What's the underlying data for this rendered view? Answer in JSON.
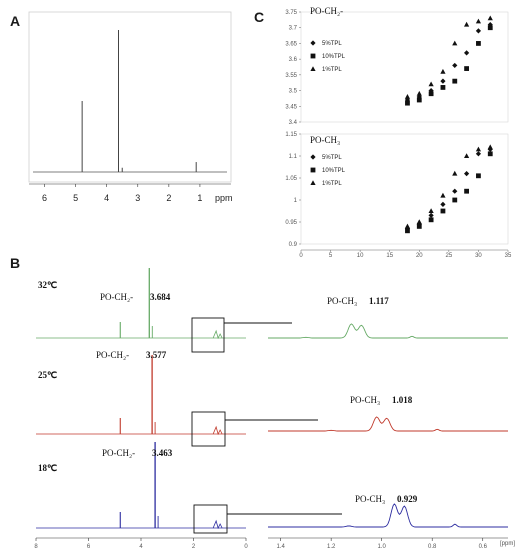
{
  "panels": {
    "a": {
      "letter": "A",
      "x_ticks": [
        "6",
        "5",
        "4",
        "3",
        "2",
        "1"
      ],
      "x_unit": "ppm"
    },
    "b": {
      "letter": "B"
    },
    "c": {
      "letter": "C"
    }
  },
  "chart_data": [
    {
      "type": "line",
      "panel": "A",
      "xlabel": "ppm",
      "xlim": [
        6.5,
        0
      ],
      "x_ticks": [
        6,
        5,
        4,
        3,
        2,
        1
      ],
      "peaks": [
        {
          "x": 4.79,
          "height": 0.5
        },
        {
          "x": 3.62,
          "height": 1.0
        },
        {
          "x": 3.5,
          "height": 0.03
        },
        {
          "x": 1.12,
          "height": 0.07
        }
      ]
    },
    {
      "type": "line",
      "panel": "B",
      "temperatures": [
        {
          "label": "32℃",
          "color": "#66aa66",
          "ch2_label": "PO-CH₂-",
          "ch2_shift": "3.684",
          "ch3_label": "PO-CH₃",
          "ch3_shift": "1.117"
        },
        {
          "label": "25℃",
          "color": "#c0392b",
          "ch2_label": "PO-CH₂-",
          "ch2_shift": "3.577",
          "ch3_label": "PO-CH₃",
          "ch3_shift": "1.018"
        },
        {
          "label": "18℃",
          "color": "#2c2ca0",
          "ch2_label": "PO-CH₂-",
          "ch2_shift": "3.463",
          "ch3_label": "PO-CH₃",
          "ch3_shift": "0.929"
        }
      ],
      "full_x_ticks": [
        "8",
        "6",
        "4",
        "2",
        "0"
      ],
      "zoom_x_ticks": [
        "1.4",
        "1.2",
        "1.0",
        "0.8",
        "0.6"
      ],
      "zoom_unit": "[ppm]"
    },
    {
      "type": "scatter",
      "panel": "C",
      "xlim": [
        0,
        35
      ],
      "x_ticks": [
        0,
        5,
        10,
        15,
        20,
        25,
        30,
        35
      ],
      "series_names": [
        "5%TPL",
        "10%TPL",
        "1%TPL"
      ],
      "top": {
        "title": "PO-CH₂-",
        "ylim": [
          3.4,
          3.75
        ],
        "y_ticks": [
          "3.75",
          "3.7",
          "3.65",
          "3.6",
          "3.55",
          "3.5",
          "3.45",
          "3.4"
        ],
        "series": [
          {
            "name": "5%TPL",
            "marker": "diamond",
            "points": [
              [
                18,
                3.47
              ],
              [
                20,
                3.48
              ],
              [
                22,
                3.5
              ],
              [
                24,
                3.53
              ],
              [
                26,
                3.58
              ],
              [
                28,
                3.62
              ],
              [
                30,
                3.69
              ],
              [
                32,
                3.71
              ]
            ]
          },
          {
            "name": "10%TPL",
            "marker": "square",
            "points": [
              [
                18,
                3.46
              ],
              [
                20,
                3.47
              ],
              [
                22,
                3.49
              ],
              [
                24,
                3.51
              ],
              [
                26,
                3.53
              ],
              [
                28,
                3.57
              ],
              [
                30,
                3.65
              ],
              [
                32,
                3.7
              ]
            ]
          },
          {
            "name": "1%TPL",
            "marker": "triangle",
            "points": [
              [
                18,
                3.48
              ],
              [
                20,
                3.49
              ],
              [
                22,
                3.52
              ],
              [
                24,
                3.56
              ],
              [
                26,
                3.65
              ],
              [
                28,
                3.71
              ],
              [
                30,
                3.72
              ],
              [
                32,
                3.73
              ]
            ]
          }
        ]
      },
      "bottom": {
        "title": "PO-CH₃",
        "ylim": [
          0.9,
          1.15
        ],
        "y_ticks": [
          "1.15",
          "1.1",
          "1.05",
          "1",
          "0.95",
          "0.9"
        ],
        "series": [
          {
            "name": "5%TPL",
            "marker": "diamond",
            "points": [
              [
                18,
                0.935
              ],
              [
                20,
                0.945
              ],
              [
                22,
                0.965
              ],
              [
                24,
                0.99
              ],
              [
                26,
                1.02
              ],
              [
                28,
                1.06
              ],
              [
                30,
                1.105
              ],
              [
                32,
                1.115
              ]
            ]
          },
          {
            "name": "10%TPL",
            "marker": "square",
            "points": [
              [
                18,
                0.93
              ],
              [
                20,
                0.94
              ],
              [
                22,
                0.955
              ],
              [
                24,
                0.975
              ],
              [
                26,
                1.0
              ],
              [
                28,
                1.02
              ],
              [
                30,
                1.055
              ],
              [
                32,
                1.105
              ]
            ]
          },
          {
            "name": "1%TPL",
            "marker": "triangle",
            "points": [
              [
                18,
                0.94
              ],
              [
                20,
                0.95
              ],
              [
                22,
                0.975
              ],
              [
                24,
                1.01
              ],
              [
                26,
                1.06
              ],
              [
                28,
                1.1
              ],
              [
                30,
                1.115
              ],
              [
                32,
                1.12
              ]
            ]
          }
        ]
      }
    }
  ]
}
